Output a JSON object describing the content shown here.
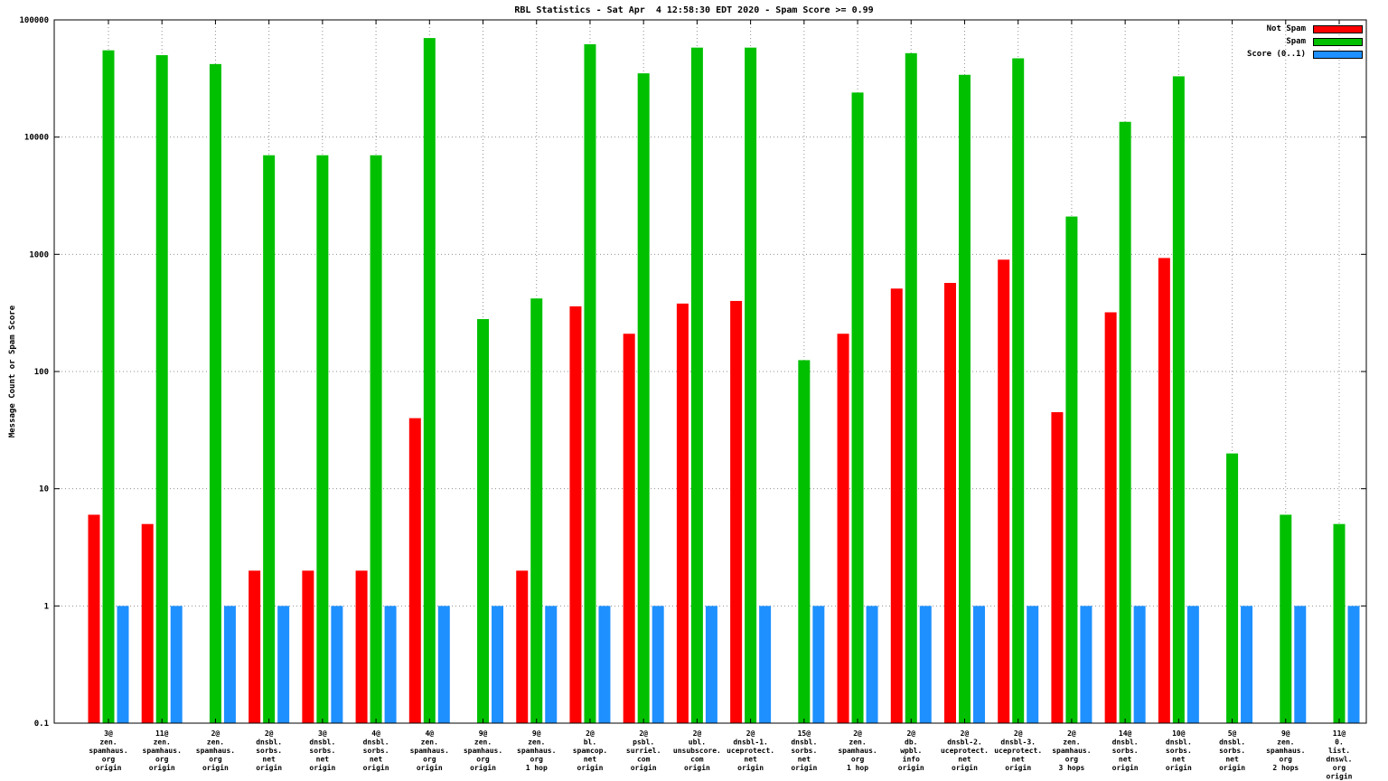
{
  "title": "RBL Statistics - Sat Apr  4 12:58:30 EDT 2020 - Spam Score >= 0.99",
  "y_axis_label": "Message Count or Spam Score",
  "legend": {
    "entries": [
      {
        "label": "Not Spam",
        "color": "#ff0000"
      },
      {
        "label": "Spam",
        "color": "#00c000"
      },
      {
        "label": "Score (0..1)",
        "color": "#1e90ff"
      }
    ]
  },
  "chart_data": {
    "type": "bar",
    "yscale": "log",
    "ylim": [
      0.1,
      100000
    ],
    "yticks": [
      "100000",
      "10000",
      "1000",
      "100",
      "10",
      "1",
      "0.1"
    ],
    "grid": true,
    "legend_position": "top-right",
    "title": "RBL Statistics - Sat Apr  4 12:58:30 EDT 2020 - Spam Score >= 0.99",
    "xlabel": "",
    "ylabel": "Message Count or Spam Score",
    "categories": [
      [
        "3@",
        "zen.",
        "spamhaus.",
        "org",
        "origin"
      ],
      [
        "11@",
        "zen.",
        "spamhaus.",
        "org",
        "origin"
      ],
      [
        "2@",
        "zen.",
        "spamhaus.",
        "org",
        "origin"
      ],
      [
        "2@",
        "dnsbl.",
        "sorbs.",
        "net",
        "origin"
      ],
      [
        "3@",
        "dnsbl.",
        "sorbs.",
        "net",
        "origin"
      ],
      [
        "4@",
        "dnsbl.",
        "sorbs.",
        "net",
        "origin"
      ],
      [
        "4@",
        "zen.",
        "spamhaus.",
        "org",
        "origin"
      ],
      [
        "9@",
        "zen.",
        "spamhaus.",
        "org",
        "origin"
      ],
      [
        "9@",
        "zen.",
        "spamhaus.",
        "org",
        "1 hop"
      ],
      [
        "2@",
        "bl.",
        "spamcop.",
        "net",
        "origin"
      ],
      [
        "2@",
        "psbl.",
        "surriel.",
        "com",
        "origin"
      ],
      [
        "2@",
        "ubl.",
        "unsubscore.",
        "com",
        "origin"
      ],
      [
        "2@",
        "dnsbl-1.",
        "uceprotect.",
        "net",
        "origin"
      ],
      [
        "15@",
        "dnsbl.",
        "sorbs.",
        "net",
        "origin"
      ],
      [
        "2@",
        "zen.",
        "spamhaus.",
        "org",
        "1 hop"
      ],
      [
        "2@",
        "db.",
        "wpbl.",
        "info",
        "origin"
      ],
      [
        "2@",
        "dnsbl-2.",
        "uceprotect.",
        "net",
        "origin"
      ],
      [
        "2@",
        "dnsbl-3.",
        "uceprotect.",
        "net",
        "origin"
      ],
      [
        "2@",
        "zen.",
        "spamhaus.",
        "org",
        "3 hops"
      ],
      [
        "14@",
        "dnsbl.",
        "sorbs.",
        "net",
        "origin"
      ],
      [
        "10@",
        "dnsbl.",
        "sorbs.",
        "net",
        "origin"
      ],
      [
        "5@",
        "dnsbl.",
        "sorbs.",
        "net",
        "origin"
      ],
      [
        "9@",
        "zen.",
        "spamhaus.",
        "org",
        "2 hops"
      ],
      [
        "11@",
        "0.",
        "list.",
        "dnswl.",
        "org",
        "origin"
      ]
    ],
    "series": [
      {
        "name": "Not Spam",
        "color": "#ff0000",
        "values": [
          6,
          5,
          null,
          2,
          2,
          2,
          40,
          null,
          2,
          360,
          210,
          380,
          400,
          null,
          210,
          510,
          570,
          900,
          45,
          320,
          930,
          null,
          null,
          null
        ]
      },
      {
        "name": "Spam",
        "color": "#00c000",
        "values": [
          55000,
          50000,
          42000,
          7000,
          7000,
          7000,
          70000,
          280,
          420,
          62000,
          35000,
          58000,
          58000,
          125,
          24000,
          52000,
          34000,
          47000,
          2100,
          13500,
          33000,
          20,
          6,
          5
        ]
      },
      {
        "name": "Score (0..1)",
        "color": "#1e90ff",
        "values": [
          1,
          1,
          1,
          1,
          1,
          1,
          1,
          1,
          1,
          1,
          1,
          1,
          1,
          1,
          1,
          1,
          1,
          1,
          1,
          1,
          1,
          1,
          1,
          1
        ]
      }
    ]
  }
}
